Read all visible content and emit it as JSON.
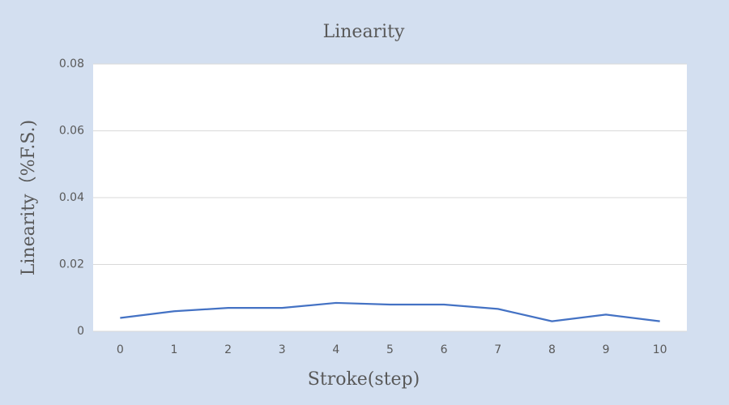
{
  "chart_data": {
    "type": "line",
    "title": "Linearity",
    "x_label": "Stroke(step)",
    "y_label": "Linearity（%F.S.)",
    "categories": [
      "0",
      "1",
      "2",
      "3",
      "4",
      "5",
      "6",
      "7",
      "8",
      "9",
      "10"
    ],
    "series": [
      {
        "name": "Linearity",
        "color": "#4472c4",
        "values": [
          0.004,
          0.006,
          0.007,
          0.007,
          0.0085,
          0.008,
          0.008,
          0.0067,
          0.003,
          0.005,
          0.003
        ]
      }
    ],
    "ylim": [
      0,
      0.08
    ],
    "yticks": [
      0,
      0.02,
      0.04,
      0.06,
      0.08
    ],
    "grid": true
  }
}
